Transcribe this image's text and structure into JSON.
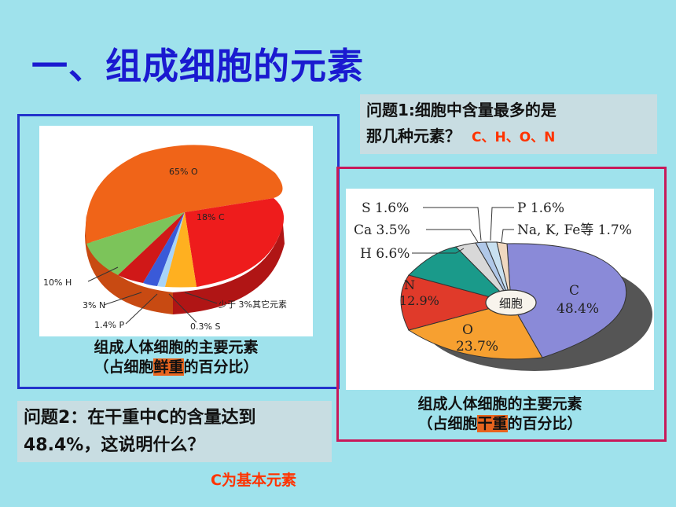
{
  "title": "一、组成细胞的元素",
  "left_chart": {
    "caption_line1": "组成人体细胞的主要元素",
    "caption_pre": "（占细胞",
    "caption_hl": "鲜重",
    "caption_post": "的百分比）",
    "labels": {
      "O": "65% O",
      "C": "18% C",
      "H": "10% H",
      "N": "3% N",
      "P": "1.4% P",
      "S": "0.3% S",
      "other": "少于 3%其它元素"
    }
  },
  "right_chart": {
    "caption_line1": "组成人体细胞的主要元素",
    "caption_pre": "（占细胞",
    "caption_hl": "干重",
    "caption_post": "的百分比）",
    "center_label": "细胞",
    "labels": {
      "S": "S 1.6%",
      "Ca": "Ca 3.5%",
      "H": "H 6.6%",
      "P": "P 1.6%",
      "NaKFe": "Na, K, Fe等  1.7%",
      "N": "N",
      "N_val": "12.9%",
      "O": "O",
      "O_val": "23.7%",
      "C": "C",
      "C_val": "48.4%"
    }
  },
  "question1": {
    "line1": "问题1:细胞中含量最多的是",
    "line2": "那几种元素？",
    "answer": "C、H、O、N"
  },
  "question2": {
    "line1": "问题2：在干重中C的含量达到",
    "line2": "48.4%，这说明什么？",
    "answer": "C为基本元素"
  },
  "chart_data": [
    {
      "type": "pie",
      "categories": [
        "O",
        "C",
        "H",
        "N",
        "P",
        "S",
        "其它元素"
      ],
      "values": [
        65,
        18,
        10,
        3,
        1.4,
        0.3,
        2.3
      ],
      "title": "组成人体细胞的主要元素（占细胞鲜重的百分比）"
    },
    {
      "type": "pie",
      "categories": [
        "C",
        "O",
        "N",
        "H",
        "Ca",
        "S",
        "P",
        "Na, K, Fe等"
      ],
      "values": [
        48.4,
        23.7,
        12.9,
        6.6,
        3.5,
        1.6,
        1.6,
        1.7
      ],
      "title": "组成人体细胞的主要元素（占细胞干重的百分比）"
    }
  ]
}
